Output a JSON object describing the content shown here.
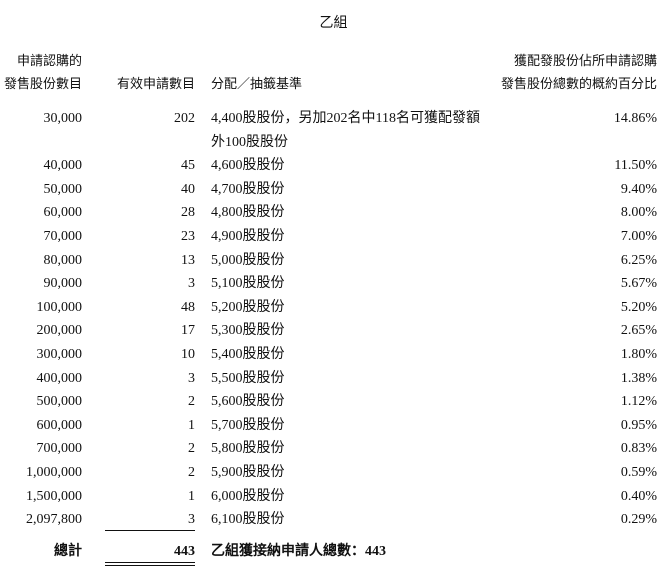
{
  "title": "乙組",
  "header": {
    "col1": [
      "申請認購的",
      "發售股份數目"
    ],
    "col2": "有效申請數目",
    "col3": "分配／抽籤基準",
    "col4": [
      "獲配發股份佔所申請認購",
      "發售股份總數的概約百分比"
    ]
  },
  "table": {
    "rows": [
      [
        "30,000",
        "202",
        "4,400股股份，另加202名中118名可獲配發額外100股股份",
        "14.86%"
      ],
      [
        "40,000",
        "45",
        "4,600股股份",
        "11.50%"
      ],
      [
        "50,000",
        "40",
        "4,700股股份",
        "9.40%"
      ],
      [
        "60,000",
        "28",
        "4,800股股份",
        "8.00%"
      ],
      [
        "70,000",
        "23",
        "4,900股股份",
        "7.00%"
      ],
      [
        "80,000",
        "13",
        "5,000股股份",
        "6.25%"
      ],
      [
        "90,000",
        "3",
        "5,100股股份",
        "5.67%"
      ],
      [
        "100,000",
        "48",
        "5,200股股份",
        "5.20%"
      ],
      [
        "200,000",
        "17",
        "5,300股股份",
        "2.65%"
      ],
      [
        "300,000",
        "10",
        "5,400股股份",
        "1.80%"
      ],
      [
        "400,000",
        "3",
        "5,500股股份",
        "1.38%"
      ],
      [
        "500,000",
        "2",
        "5,600股股份",
        "1.12%"
      ],
      [
        "600,000",
        "1",
        "5,700股股份",
        "0.95%"
      ],
      [
        "700,000",
        "2",
        "5,800股股份",
        "0.83%"
      ],
      [
        "1,000,000",
        "2",
        "5,900股股份",
        "0.59%"
      ],
      [
        "1,500,000",
        "1",
        "6,000股股份",
        "0.40%"
      ],
      [
        "2,097,800",
        "3",
        "6,100股股份",
        "0.29%"
      ]
    ]
  },
  "total": {
    "label": "總計",
    "value": "443",
    "text": "乙組獲接納申請人總數：443"
  }
}
